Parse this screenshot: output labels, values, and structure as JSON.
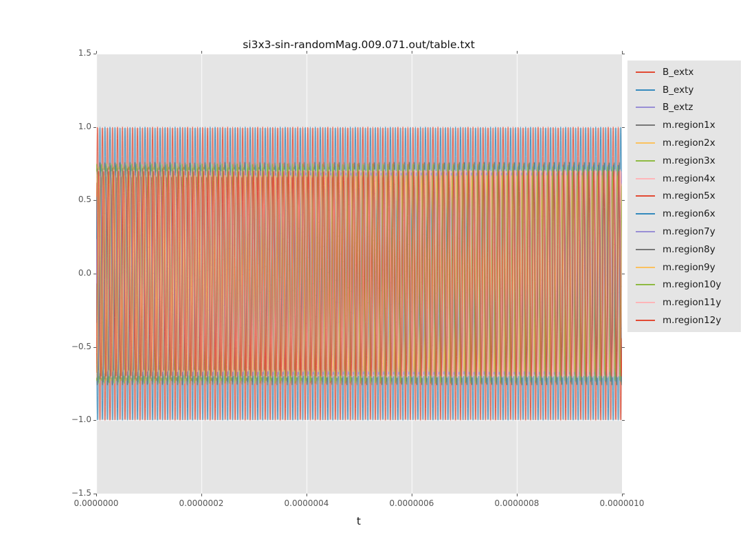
{
  "chart_data": {
    "type": "line",
    "title": "si3x3-sin-randomMag.009.071.out/table.txt",
    "xlabel": "t",
    "ylabel": "",
    "xlim": [
      0,
      1e-06
    ],
    "ylim": [
      -1.5,
      1.5
    ],
    "x_tick_labels": [
      "0.0000000",
      "0.0000002",
      "0.0000004",
      "0.0000006",
      "0.0000008",
      "0.0000010"
    ],
    "y_tick_labels": [
      "1.5",
      "1.0",
      "0.5",
      "0.0",
      "−0.5",
      "−1.0",
      "−1.5"
    ],
    "grid": true,
    "grid_color": "#ffffff",
    "plot_background": "#e5e5e5",
    "figure_background": "#ffffff",
    "tick_color": "#555555",
    "tick_label_color": "#555555",
    "title_color": "#111111",
    "legend_position": "outside-upper-right",
    "legend_background": "#e5e5e5",
    "signal_model": "y(t) = amplitude * sin(2*pi * cycles_in_window * t/1e-6 + phase_deg); ~105 oscillation periods fill the 0 to 1e-6 window; B_ext envelope reaches +/-1.0, m.region envelopes cluster near +/-0.7",
    "series": [
      {
        "name": "B_extx",
        "color": "#e24a33",
        "amplitude": 1.0,
        "cycles_in_window": 105.0,
        "phase_deg": 0
      },
      {
        "name": "B_exty",
        "color": "#348abd",
        "amplitude": 1.0,
        "cycles_in_window": 105.0,
        "phase_deg": 180
      },
      {
        "name": "B_extz",
        "color": "#988ed5",
        "amplitude": 0.0,
        "cycles_in_window": 105.0,
        "phase_deg": 0
      },
      {
        "name": "m.region1x",
        "color": "#777777",
        "amplitude": 0.72,
        "cycles_in_window": 105.0,
        "phase_deg": 10
      },
      {
        "name": "m.region2x",
        "color": "#fbc15e",
        "amplitude": 0.68,
        "cycles_in_window": 105.4,
        "phase_deg": 35
      },
      {
        "name": "m.region3x",
        "color": "#8eba42",
        "amplitude": 0.75,
        "cycles_in_window": 104.7,
        "phase_deg": 60
      },
      {
        "name": "m.region4x",
        "color": "#ffb5b8",
        "amplitude": 0.7,
        "cycles_in_window": 105.2,
        "phase_deg": 85
      },
      {
        "name": "m.region5x",
        "color": "#e24a33",
        "amplitude": 0.66,
        "cycles_in_window": 104.5,
        "phase_deg": 110
      },
      {
        "name": "m.region6x",
        "color": "#348abd",
        "amplitude": 0.74,
        "cycles_in_window": 105.6,
        "phase_deg": 135
      },
      {
        "name": "m.region7y",
        "color": "#988ed5",
        "amplitude": 0.69,
        "cycles_in_window": 104.8,
        "phase_deg": 160
      },
      {
        "name": "m.region8y",
        "color": "#777777",
        "amplitude": 0.76,
        "cycles_in_window": 105.3,
        "phase_deg": 185
      },
      {
        "name": "m.region9y",
        "color": "#fbc15e",
        "amplitude": 0.67,
        "cycles_in_window": 104.6,
        "phase_deg": 210
      },
      {
        "name": "m.region10y",
        "color": "#8eba42",
        "amplitude": 0.73,
        "cycles_in_window": 105.5,
        "phase_deg": 235
      },
      {
        "name": "m.region11y",
        "color": "#ffb5b8",
        "amplitude": 0.71,
        "cycles_in_window": 104.9,
        "phase_deg": 260
      },
      {
        "name": "m.region12y",
        "color": "#e24a33",
        "amplitude": 0.7,
        "cycles_in_window": 105.1,
        "phase_deg": 285
      }
    ]
  }
}
